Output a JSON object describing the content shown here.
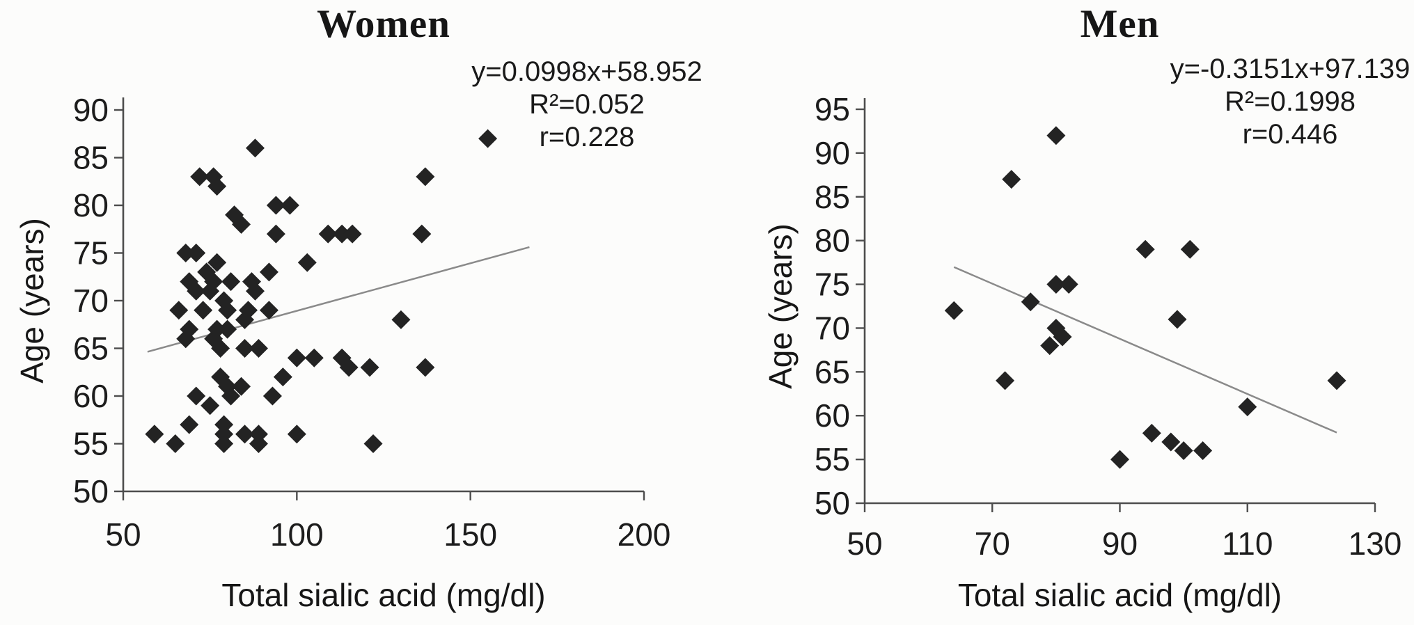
{
  "figure": {
    "background_color": "#fcfcfb",
    "ink_color": "#1c1c1c",
    "axis_color": "#4d4d4d",
    "point_color": "#232323",
    "trend_color": "#8a8a8a"
  },
  "chart_data": [
    {
      "type": "scatter",
      "title": "Women",
      "equation_lines": [
        "y=0.0998x+58.952",
        "R²=0.052",
        "r=0.228"
      ],
      "xlabel": "Total sialic acid (mg/dl)",
      "ylabel": "Age (years)",
      "xlim": [
        50,
        200
      ],
      "ylim": [
        50,
        90
      ],
      "xticks": [
        50,
        100,
        150,
        200
      ],
      "yticks": [
        50,
        55,
        60,
        65,
        70,
        75,
        80,
        85,
        90
      ],
      "legend": "none",
      "grid": false,
      "marker": "diamond",
      "trendline": {
        "slope": 0.0998,
        "intercept": 58.952,
        "x_range": [
          57,
          167
        ]
      },
      "points": [
        [
          88,
          86
        ],
        [
          72,
          83
        ],
        [
          76,
          83
        ],
        [
          77,
          82
        ],
        [
          94,
          80
        ],
        [
          98,
          80
        ],
        [
          82,
          79
        ],
        [
          84,
          78
        ],
        [
          94,
          77
        ],
        [
          109,
          77
        ],
        [
          68,
          75
        ],
        [
          71,
          75
        ],
        [
          103,
          74
        ],
        [
          77,
          74
        ],
        [
          74,
          73
        ],
        [
          76,
          72
        ],
        [
          75,
          71
        ],
        [
          81,
          72
        ],
        [
          87,
          72
        ],
        [
          92,
          73
        ],
        [
          88,
          71
        ],
        [
          69,
          72
        ],
        [
          71,
          71
        ],
        [
          66,
          69
        ],
        [
          73,
          69
        ],
        [
          79,
          70
        ],
        [
          80,
          69
        ],
        [
          86,
          69
        ],
        [
          92,
          69
        ],
        [
          69,
          67
        ],
        [
          68,
          66
        ],
        [
          77,
          67
        ],
        [
          80,
          67
        ],
        [
          85,
          68
        ],
        [
          85,
          65
        ],
        [
          89,
          65
        ],
        [
          100,
          64
        ],
        [
          105,
          64
        ],
        [
          76,
          66
        ],
        [
          78,
          65
        ],
        [
          96,
          62
        ],
        [
          93,
          60
        ],
        [
          84,
          61
        ],
        [
          78,
          62
        ],
        [
          80,
          61
        ],
        [
          81,
          60
        ],
        [
          71,
          60
        ],
        [
          75,
          59
        ],
        [
          69,
          57
        ],
        [
          79,
          57
        ],
        [
          79,
          56
        ],
        [
          85,
          56
        ],
        [
          89,
          56
        ],
        [
          59,
          56
        ],
        [
          65,
          55
        ],
        [
          79,
          55
        ],
        [
          89,
          55
        ],
        [
          100,
          56
        ],
        [
          155,
          87
        ],
        [
          137,
          83
        ],
        [
          136,
          77
        ],
        [
          113,
          77
        ],
        [
          116,
          77
        ],
        [
          130,
          68
        ],
        [
          113,
          64
        ],
        [
          115,
          63
        ],
        [
          121,
          63
        ],
        [
          137,
          63
        ],
        [
          122,
          55
        ]
      ]
    },
    {
      "type": "scatter",
      "title": "Men",
      "equation_lines": [
        "y=-0.3151x+97.139",
        "R²=0.1998",
        "r=0.446"
      ],
      "xlabel": "Total sialic acid (mg/dl)",
      "ylabel": "Age (years)",
      "xlim": [
        50,
        130
      ],
      "ylim": [
        50,
        95
      ],
      "xticks": [
        50,
        70,
        90,
        110,
        130
      ],
      "yticks": [
        50,
        55,
        60,
        65,
        70,
        75,
        80,
        85,
        90,
        95
      ],
      "legend": "none",
      "grid": false,
      "marker": "diamond",
      "trendline": {
        "slope": -0.3151,
        "intercept": 97.139,
        "x_range": [
          64,
          124
        ]
      },
      "points": [
        [
          80,
          92
        ],
        [
          73,
          87
        ],
        [
          94,
          79
        ],
        [
          101,
          79
        ],
        [
          80,
          75
        ],
        [
          82,
          75
        ],
        [
          76,
          73
        ],
        [
          64,
          72
        ],
        [
          99,
          71
        ],
        [
          80,
          70
        ],
        [
          81,
          69
        ],
        [
          79,
          68
        ],
        [
          72,
          64
        ],
        [
          124,
          64
        ],
        [
          110,
          61
        ],
        [
          95,
          58
        ],
        [
          98,
          57
        ],
        [
          100,
          56
        ],
        [
          103,
          56
        ],
        [
          90,
          55
        ]
      ]
    }
  ]
}
